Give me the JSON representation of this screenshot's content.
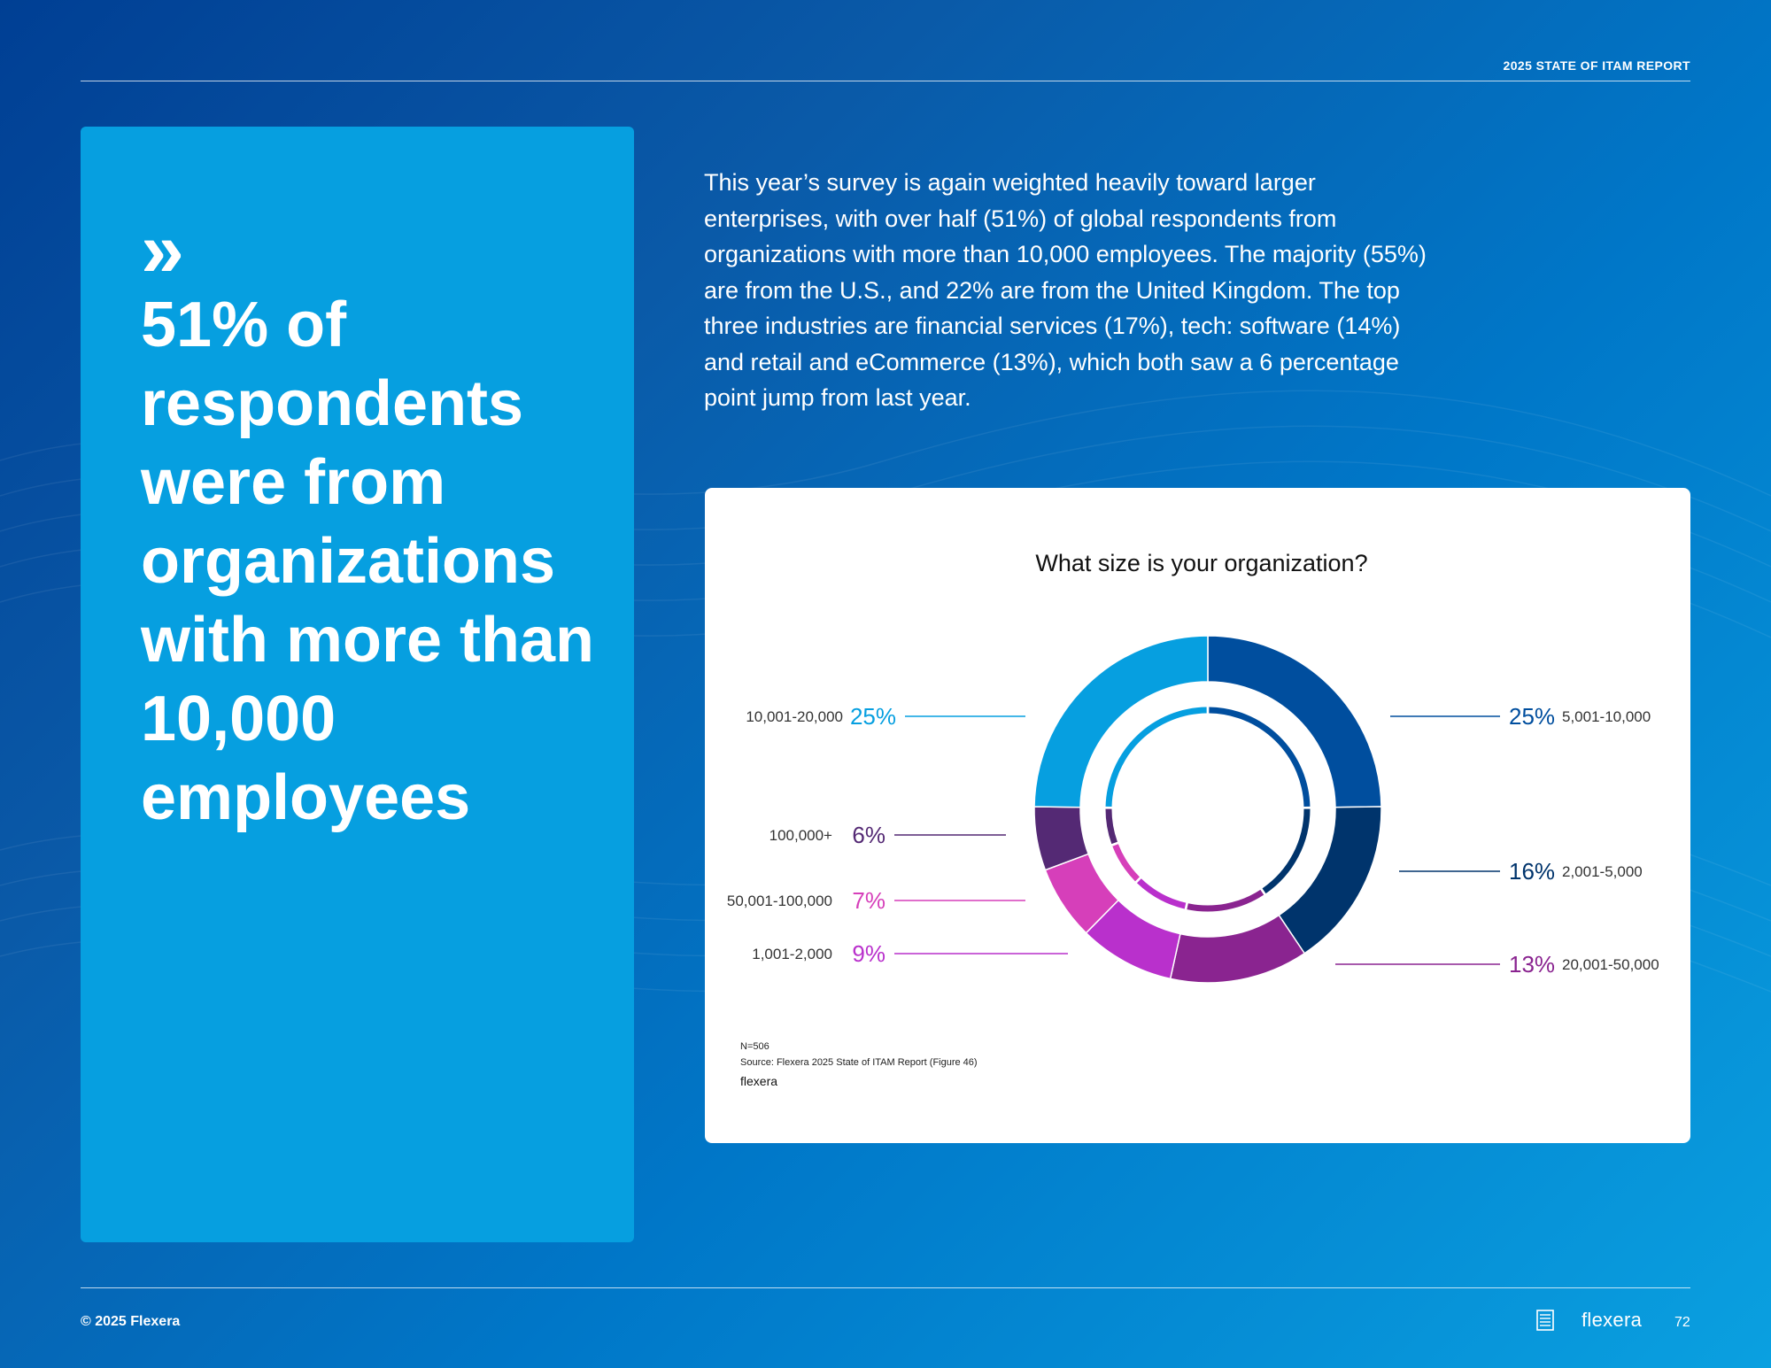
{
  "header": {
    "report_title": "2025 STATE OF ITAM REPORT"
  },
  "callout": {
    "chevron": "»",
    "headline": "51% of respondents were from organizations with more than 10,000 employees"
  },
  "intro_text": "This year’s survey is again weighted heavily toward larger enterprises, with over half (51%) of global respondents from organizations with more than 10,000 employees. The majority (55%) are from the U.S., and 22% are from the United Kingdom. The top three industries are financial services (17%), tech: software (14%) and retail and eCommerce (13%), which both saw a 6 percentage point jump from last year.",
  "chart_data": {
    "type": "pie",
    "title": "What size is your organization?",
    "categories": [
      "5,001-10,000",
      "2,001-5,000",
      "20,001-50,000",
      "1,001-2,000",
      "50,001-100,000",
      "100,000+",
      "10,001-20,000"
    ],
    "values": [
      25,
      16,
      13,
      9,
      7,
      6,
      25
    ],
    "value_labels": [
      "25%",
      "16%",
      "13%",
      "9%",
      "7%",
      "6%",
      "25%"
    ],
    "colors": [
      "#004e9e",
      "#00346c",
      "#8a2490",
      "#b930cc",
      "#d63fba",
      "#542974",
      "#069fe0"
    ],
    "inner_ring_colors": [
      "#004e9e",
      "#00346c",
      "#8a2490",
      "#b930cc",
      "#d63fba",
      "#542974",
      "#069fe0"
    ],
    "style": "donut",
    "note": "N=506",
    "source": "Source: Flexera 2025 State of ITAM Report (Figure 46)",
    "brand": "flexera"
  },
  "footer": {
    "copyright": "© 2025 Flexera",
    "brand": "flexera",
    "page_number": "72"
  }
}
